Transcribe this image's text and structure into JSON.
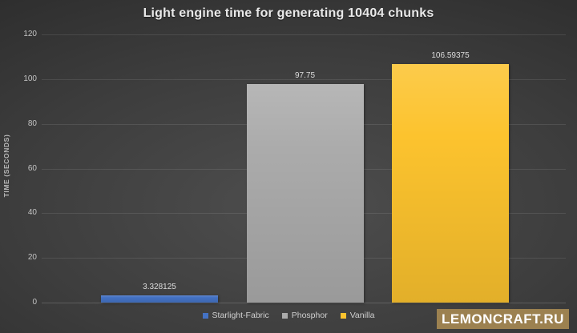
{
  "chart_data": {
    "type": "bar",
    "title": "Light engine time for generating 10404 chunks",
    "xlabel": "",
    "ylabel": "TIME (SECONDS)",
    "categories": [
      "Starlight-Fabric",
      "Phosphor",
      "Vanilla"
    ],
    "values": [
      3.328125,
      97.75,
      106.59375
    ],
    "value_labels": [
      "3.328125",
      "97.75",
      "106.59375"
    ],
    "bar_colors": [
      "#4472c4",
      "#ababab",
      "#fcc32e"
    ],
    "ylim": [
      0,
      120
    ],
    "yticks": [
      0,
      20,
      40,
      60,
      80,
      100,
      120
    ],
    "grid": true,
    "legend_position": "bottom",
    "legend_entries": [
      "Starlight-Fabric",
      "Phosphor",
      "Vanilla"
    ]
  },
  "watermark": {
    "text": "LEMONCRAFT.RU",
    "bg_color": "#9c8150",
    "text_color": "#ffffff"
  }
}
